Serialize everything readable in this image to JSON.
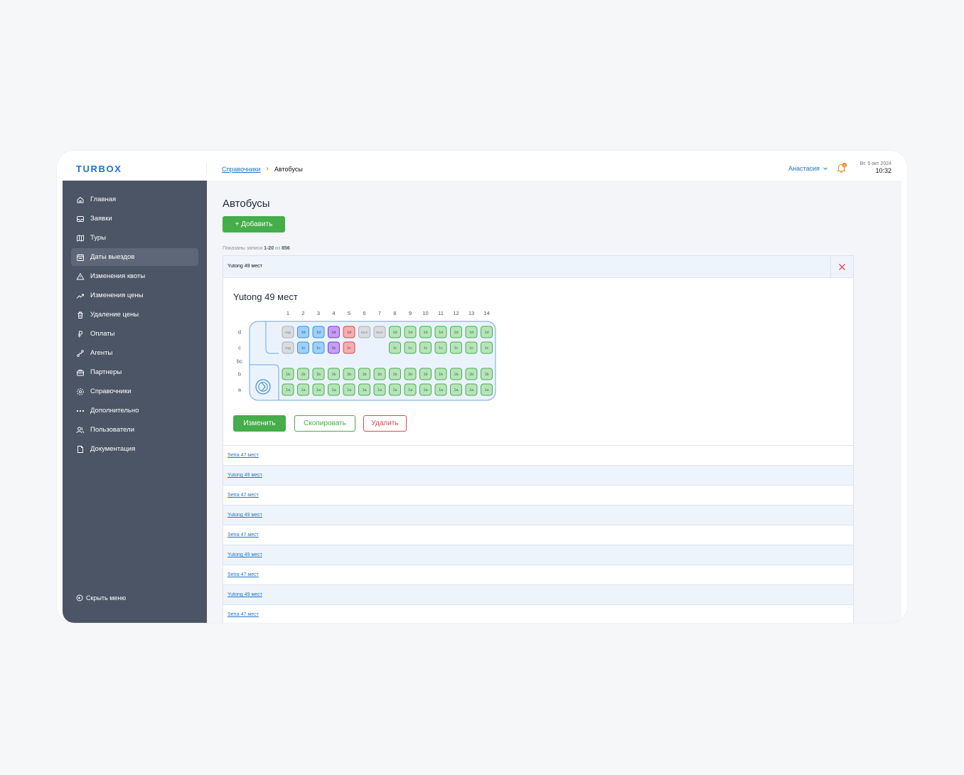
{
  "app": {
    "logo": "TURBOX"
  },
  "breadcrumb": {
    "parent": "Справочники",
    "separator": "›",
    "current": "Автобусы"
  },
  "user": {
    "name": "Анастасия",
    "notifications": "3"
  },
  "datetime": {
    "date": "Вт. 5 окт 2024",
    "time": "10:32"
  },
  "sidebar": {
    "items": [
      {
        "label": "Главная",
        "icon": "home-icon",
        "active": false
      },
      {
        "label": "Заявки",
        "icon": "inbox-icon",
        "active": false
      },
      {
        "label": "Туры",
        "icon": "map-icon",
        "active": false
      },
      {
        "label": "Даты выездов",
        "icon": "calendar-icon",
        "active": true
      },
      {
        "label": "Изменения квоты",
        "icon": "warning-icon",
        "active": false
      },
      {
        "label": "Изменения цены",
        "icon": "trend-icon",
        "active": false
      },
      {
        "label": "Удаление цены",
        "icon": "trash-icon",
        "active": false
      },
      {
        "label": "Оплаты",
        "icon": "ruble-icon",
        "active": false
      },
      {
        "label": "Агенты",
        "icon": "agents-icon",
        "active": false
      },
      {
        "label": "Партнеры",
        "icon": "partners-icon",
        "active": false
      },
      {
        "label": "Справочники",
        "icon": "gear-icon",
        "active": false
      },
      {
        "label": "Дополнительно",
        "icon": "more-icon",
        "active": false
      },
      {
        "label": "Пользователи",
        "icon": "users-icon",
        "active": false
      },
      {
        "label": "Документация",
        "icon": "document-icon",
        "active": false
      }
    ],
    "hide_label": "Скрыть меню"
  },
  "page": {
    "title": "Автобусы",
    "add_label": "+ Добавить",
    "records_prefix": "Показаны записи",
    "records_range": "1-20",
    "records_of": "из",
    "records_total": "856"
  },
  "card": {
    "header_title": "Yutong 49 мест",
    "bus_name": "Yutong 49 мест",
    "edit_label": "Изменить",
    "copy_label": "Скопировать",
    "delete_label": "Удалить"
  },
  "seatmap": {
    "columns": [
      "1",
      "2",
      "3",
      "4",
      "5",
      "6",
      "7",
      "8",
      "9",
      "10",
      "11",
      "12",
      "13",
      "14"
    ],
    "row_labels": [
      "d",
      "c",
      "bc",
      "b",
      "a"
    ],
    "rows": {
      "d": [
        {
          "label": "гид",
          "status": "gray"
        },
        {
          "label": "1d",
          "status": "blue"
        },
        {
          "label": "1d",
          "status": "blue"
        },
        {
          "label": "1d",
          "status": "purple"
        },
        {
          "label": "1d",
          "status": "red"
        },
        {
          "label": "вых",
          "status": "gray"
        },
        {
          "label": "вых",
          "status": "gray"
        },
        {
          "label": "1d",
          "status": "green"
        },
        {
          "label": "1d",
          "status": "green"
        },
        {
          "label": "1d",
          "status": "green"
        },
        {
          "label": "1d",
          "status": "green"
        },
        {
          "label": "1d",
          "status": "green"
        },
        {
          "label": "1d",
          "status": "green"
        },
        {
          "label": "1d",
          "status": "green"
        }
      ],
      "c": [
        {
          "label": "гид",
          "status": "gray"
        },
        {
          "label": "1c",
          "status": "blue"
        },
        {
          "label": "1c",
          "status": "blue"
        },
        {
          "label": "1c",
          "status": "purple"
        },
        {
          "label": "1c",
          "status": "red"
        },
        null,
        null,
        {
          "label": "1c",
          "status": "green"
        },
        {
          "label": "1c",
          "status": "green"
        },
        {
          "label": "1c",
          "status": "green"
        },
        {
          "label": "1c",
          "status": "green"
        },
        {
          "label": "1c",
          "status": "green"
        },
        {
          "label": "1c",
          "status": "green"
        },
        {
          "label": "1c",
          "status": "green"
        }
      ],
      "b": [
        {
          "label": "1b",
          "status": "green"
        },
        {
          "label": "1b",
          "status": "green"
        },
        {
          "label": "1b",
          "status": "green"
        },
        {
          "label": "1b",
          "status": "green"
        },
        {
          "label": "1b",
          "status": "green"
        },
        {
          "label": "1b",
          "status": "green"
        },
        {
          "label": "1b",
          "status": "green"
        },
        {
          "label": "1b",
          "status": "green"
        },
        {
          "label": "1b",
          "status": "green"
        },
        {
          "label": "1b",
          "status": "green"
        },
        {
          "label": "1b",
          "status": "green"
        },
        {
          "label": "1b",
          "status": "green"
        },
        {
          "label": "1b",
          "status": "green"
        },
        {
          "label": "1b",
          "status": "green"
        }
      ],
      "a": [
        {
          "label": "1a",
          "status": "green"
        },
        {
          "label": "1a",
          "status": "green"
        },
        {
          "label": "1a",
          "status": "green"
        },
        {
          "label": "1a",
          "status": "green"
        },
        {
          "label": "1a",
          "status": "green"
        },
        {
          "label": "1a",
          "status": "green"
        },
        {
          "label": "1a",
          "status": "green"
        },
        {
          "label": "1a",
          "status": "green"
        },
        {
          "label": "1a",
          "status": "green"
        },
        {
          "label": "1a",
          "status": "green"
        },
        {
          "label": "1a",
          "status": "green"
        },
        {
          "label": "1a",
          "status": "green"
        },
        {
          "label": "1a",
          "status": "green"
        },
        {
          "label": "1a",
          "status": "green"
        }
      ]
    },
    "colors": {
      "green": {
        "fill": "#b7e4b9",
        "stroke": "#4caf50",
        "text": "#2e7d32"
      },
      "blue": {
        "fill": "#9fd0f7",
        "stroke": "#3d8fd8",
        "text": "#1e5f9c"
      },
      "purple": {
        "fill": "#c39ef2",
        "stroke": "#7b3fd0",
        "text": "#4b1f8a"
      },
      "red": {
        "fill": "#f3b0b2",
        "stroke": "#d9484d",
        "text": "#a52a2e"
      },
      "gray": {
        "fill": "#d9dce1",
        "stroke": "#a9aeb6",
        "text": "#8a9099"
      }
    }
  },
  "list": [
    "Setra 47 мест",
    "Yutong 49 мест",
    "Setra 47 мест",
    "Yutong 49 мест",
    "Setra 47 мест",
    "Yutong 49 мест",
    "Setra 47 мест",
    "Yutong 49 мест",
    "Setra 47 мест"
  ]
}
